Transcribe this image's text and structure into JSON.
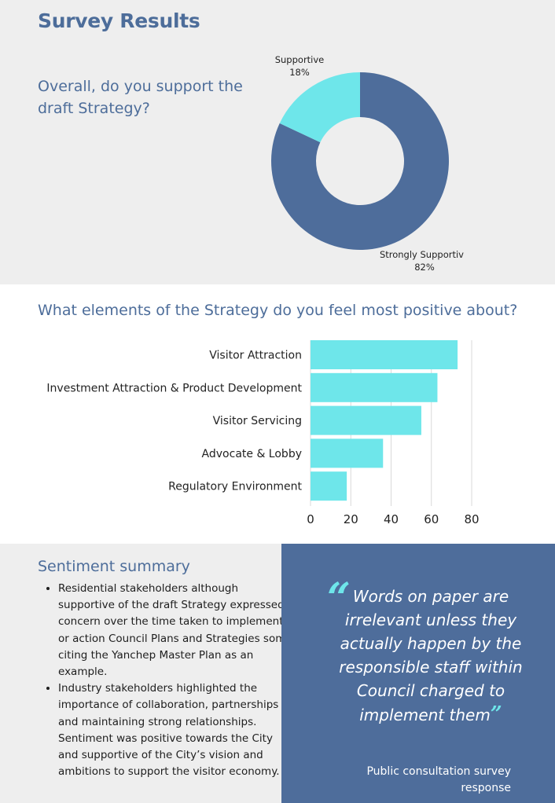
{
  "page": {
    "title": "Survey Results"
  },
  "donut_section": {
    "question": "Overall, do you support the draft Strategy?"
  },
  "bar_section": {
    "question": "What elements of the Strategy do you feel most positive about?"
  },
  "sentiment": {
    "title": "Sentiment summary",
    "bullets": [
      "Residential stakeholders although supportive of the draft Strategy expressed concern over the time taken to implement or action Council Plans and Strategies some citing the Yanchep Master Plan as an example.",
      "Industry stakeholders highlighted the importance of collaboration, partnerships and maintaining strong relationships. Sentiment was positive towards the City and supportive of the City’s vision and ambitions to support the visitor economy."
    ]
  },
  "quote": {
    "text": "Words on paper are irrelevant unless they actually happen by the responsible staff within Council charged to implement them",
    "open_mark": "“",
    "close_mark": "”",
    "attribution": "Public consultation survey response"
  },
  "colors": {
    "heading": "#4d6d9a",
    "dark_blue": "#4e6d9b",
    "cyan": "#6ee6ea",
    "light_bg": "#eeeeee"
  },
  "chart_data": [
    {
      "type": "pie",
      "subtype": "donut",
      "slices": [
        {
          "label": "Strongly Supportive",
          "value": 82,
          "value_label": "82%",
          "color": "#4e6d9b"
        },
        {
          "label": "Supportive",
          "value": 18,
          "value_label": "18%",
          "color": "#6ee6ea"
        }
      ]
    },
    {
      "type": "bar",
      "orientation": "horizontal",
      "categories": [
        "Visitor Attraction",
        "Investment Attraction & Product Development",
        "Visitor Servicing",
        "Advocate & Lobby",
        "Regulatory Environment"
      ],
      "values": [
        73,
        63,
        55,
        36,
        18
      ],
      "xlim": [
        0,
        80
      ],
      "xticks": [
        0,
        20,
        40,
        60,
        80
      ],
      "grid": true,
      "bar_color": "#6ee6ea"
    }
  ]
}
